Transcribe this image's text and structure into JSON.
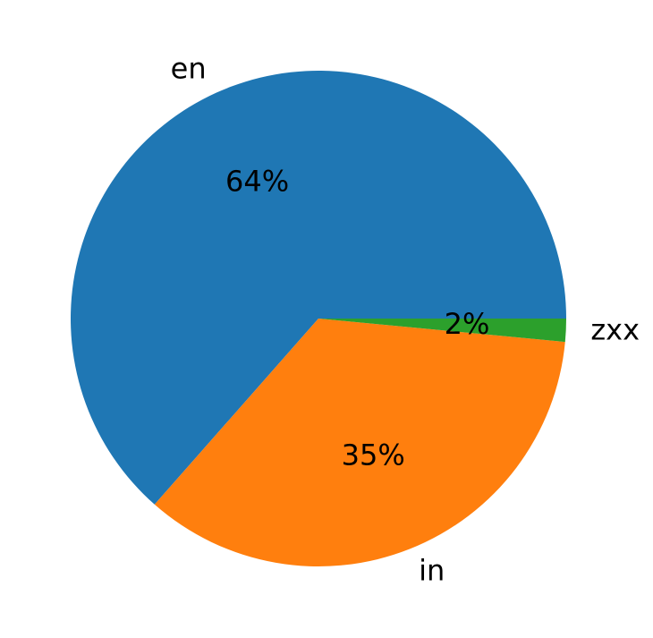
{
  "chart_data": {
    "type": "pie",
    "title": "",
    "slices": [
      {
        "label": "en",
        "value": 63.5,
        "pct_label": "64%",
        "color": "#1f77b4"
      },
      {
        "label": "in",
        "value": 35.0,
        "pct_label": "35%",
        "color": "#ff7f0e"
      },
      {
        "label": "zxx",
        "value": 1.5,
        "pct_label": "2%",
        "color": "#2ca02c"
      }
    ],
    "start_angle_deg": 0,
    "direction": "counterclockwise",
    "legend": "none"
  }
}
